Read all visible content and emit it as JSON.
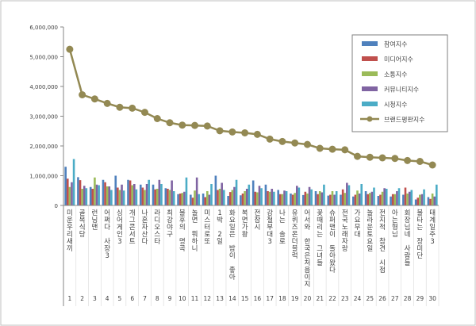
{
  "chart_data": {
    "type": "bar",
    "title": "",
    "xlabel": "",
    "ylabel": "",
    "ylim": [
      0,
      6000000
    ],
    "yticks": [
      "0",
      "1,000,000",
      "2,000,000",
      "3,000,000",
      "4,000,000",
      "5,000,000",
      "6,000,000"
    ],
    "grid": false,
    "legend_position": "top-right",
    "categories": [
      "1",
      "2",
      "3",
      "4",
      "5",
      "6",
      "7",
      "8",
      "9",
      "10",
      "11",
      "12",
      "13",
      "14",
      "15",
      "16",
      "17",
      "18",
      "19",
      "20",
      "21",
      "22",
      "23",
      "24",
      "25",
      "26",
      "27",
      "28",
      "29",
      "30"
    ],
    "programs": [
      "미운우리새끼",
      "골목식당",
      "런닝맨",
      "어쩌다 사장3",
      "싱어게인3",
      "개그콘서트",
      "나혼자산다",
      "라디오스타",
      "최강야구",
      "불후의 명곡",
      "놀면 뭐하니",
      "미스터로또",
      "1박 2일",
      "화요일은 밤이 좋아",
      "복면가왕",
      "전참시",
      "강철부대3",
      "나는 솔로",
      "유퀴즈온더블럭",
      "어서와 한국은처음이지",
      "꽃때리는 그녀들",
      "슈퍼맨이 돌아왔다",
      "전국노래자랑",
      "가요무대",
      "놀라운토요일",
      "전지적 참견 시점",
      "아는형님",
      "회장님네 사람들",
      "불타는 장미단",
      "태계일주3"
    ],
    "series": [
      {
        "name": "참여지수",
        "color": "#4f81bd",
        "values": [
          1300000,
          950000,
          620000,
          860000,
          1000000,
          860000,
          700000,
          700000,
          580000,
          380000,
          360000,
          400000,
          1000000,
          320000,
          340000,
          840000,
          700000,
          520000,
          400000,
          350000,
          480000,
          330000,
          360000,
          300000,
          480000,
          320000,
          300000,
          360000,
          200000,
          280000
        ]
      },
      {
        "name": "미디어지수",
        "color": "#c0504d",
        "values": [
          900000,
          850000,
          560000,
          780000,
          600000,
          840000,
          600000,
          540000,
          560000,
          400000,
          260000,
          280000,
          520000,
          450000,
          400000,
          460000,
          480000,
          380000,
          360000,
          460000,
          380000,
          360000,
          540000,
          360000,
          380000,
          360000,
          380000,
          600000,
          260000,
          220000
        ]
      },
      {
        "name": "소통지수",
        "color": "#9bbb59",
        "values": [
          620000,
          560000,
          940000,
          640000,
          520000,
          680000,
          520000,
          560000,
          520000,
          420000,
          500000,
          480000,
          560000,
          520000,
          480000,
          440000,
          460000,
          380000,
          420000,
          400000,
          480000,
          480000,
          420000,
          500000,
          420000,
          460000,
          380000,
          400000,
          360000,
          400000
        ]
      },
      {
        "name": "커뮤니티지수",
        "color": "#8064a2",
        "values": [
          780000,
          660000,
          700000,
          640000,
          700000,
          720000,
          720000,
          860000,
          840000,
          460000,
          940000,
          360000,
          760000,
          620000,
          560000,
          660000,
          560000,
          500000,
          660000,
          620000,
          440000,
          360000,
          760000,
          400000,
          460000,
          580000,
          480000,
          460000,
          380000,
          300000
        ]
      },
      {
        "name": "시청지수",
        "color": "#4bacc6",
        "values": [
          1560000,
          580000,
          680000,
          520000,
          500000,
          540000,
          860000,
          720000,
          480000,
          940000,
          380000,
          720000,
          520000,
          860000,
          700000,
          580000,
          460000,
          480000,
          600000,
          540000,
          700000,
          480000,
          680000,
          720000,
          600000,
          560000,
          580000,
          520000,
          540000,
          700000
        ]
      }
    ],
    "line": {
      "name": "브랜드평판지수",
      "color": "#938953",
      "values": [
        5250000,
        3720000,
        3580000,
        3430000,
        3300000,
        3270000,
        3130000,
        2920000,
        2780000,
        2700000,
        2690000,
        2670000,
        2510000,
        2470000,
        2440000,
        2390000,
        2230000,
        2150000,
        2100000,
        2050000,
        1920000,
        1890000,
        1870000,
        1650000,
        1620000,
        1600000,
        1580000,
        1510000,
        1480000,
        1360000
      ]
    }
  }
}
